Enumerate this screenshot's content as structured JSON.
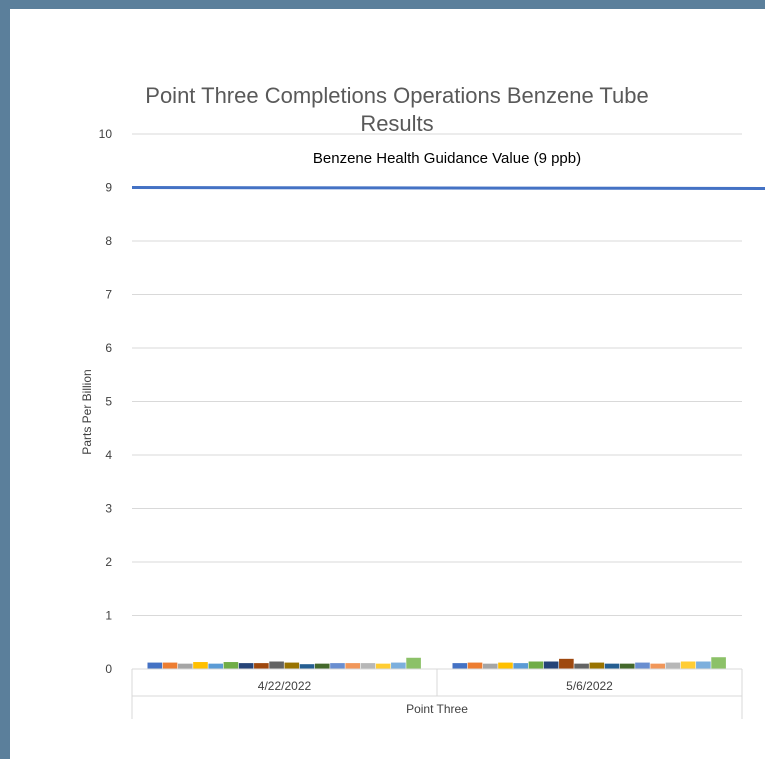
{
  "chart_data": {
    "type": "bar",
    "title_line1": "Point Three Completions Operations Benzene Tube",
    "title_line2": "Results",
    "xlabel": "Point Three",
    "ylabel": "Parts Per Billion",
    "ylim": [
      0,
      10
    ],
    "yticks": [
      "0",
      "1",
      "2",
      "3",
      "4",
      "5",
      "6",
      "7",
      "8",
      "9",
      "10"
    ],
    "grid": true,
    "categories": [
      "4/22/2022",
      "5/6/2022"
    ],
    "series_colors": [
      "#4472c4",
      "#ed7d31",
      "#a5a5a5",
      "#ffc000",
      "#5b9bd5",
      "#70ad47",
      "#264478",
      "#9e480e",
      "#636363",
      "#997300",
      "#255e91",
      "#43682b",
      "#698ed0",
      "#f1975a",
      "#b7b7b7",
      "#ffcd33",
      "#7cafdd",
      "#8cc168"
    ],
    "series": [
      {
        "values": [
          0.12,
          0.11
        ]
      },
      {
        "values": [
          0.12,
          0.12
        ]
      },
      {
        "values": [
          0.1,
          0.1
        ]
      },
      {
        "values": [
          0.13,
          0.12
        ]
      },
      {
        "values": [
          0.1,
          0.11
        ]
      },
      {
        "values": [
          0.13,
          0.14
        ]
      },
      {
        "values": [
          0.11,
          0.14
        ]
      },
      {
        "values": [
          0.11,
          0.19
        ]
      },
      {
        "values": [
          0.14,
          0.1
        ]
      },
      {
        "values": [
          0.12,
          0.12
        ]
      },
      {
        "values": [
          0.09,
          0.1
        ]
      },
      {
        "values": [
          0.1,
          0.1
        ]
      },
      {
        "values": [
          0.11,
          0.12
        ]
      },
      {
        "values": [
          0.11,
          0.1
        ]
      },
      {
        "values": [
          0.11,
          0.12
        ]
      },
      {
        "values": [
          0.1,
          0.14
        ]
      },
      {
        "values": [
          0.12,
          0.14
        ]
      },
      {
        "values": [
          0.21,
          0.22
        ]
      }
    ],
    "reference_line": {
      "label": "Benzene Health Guidance Value (9 ppb)",
      "value": 9,
      "color": "#4472c4"
    },
    "gridline_color": "#d9d9d9"
  }
}
